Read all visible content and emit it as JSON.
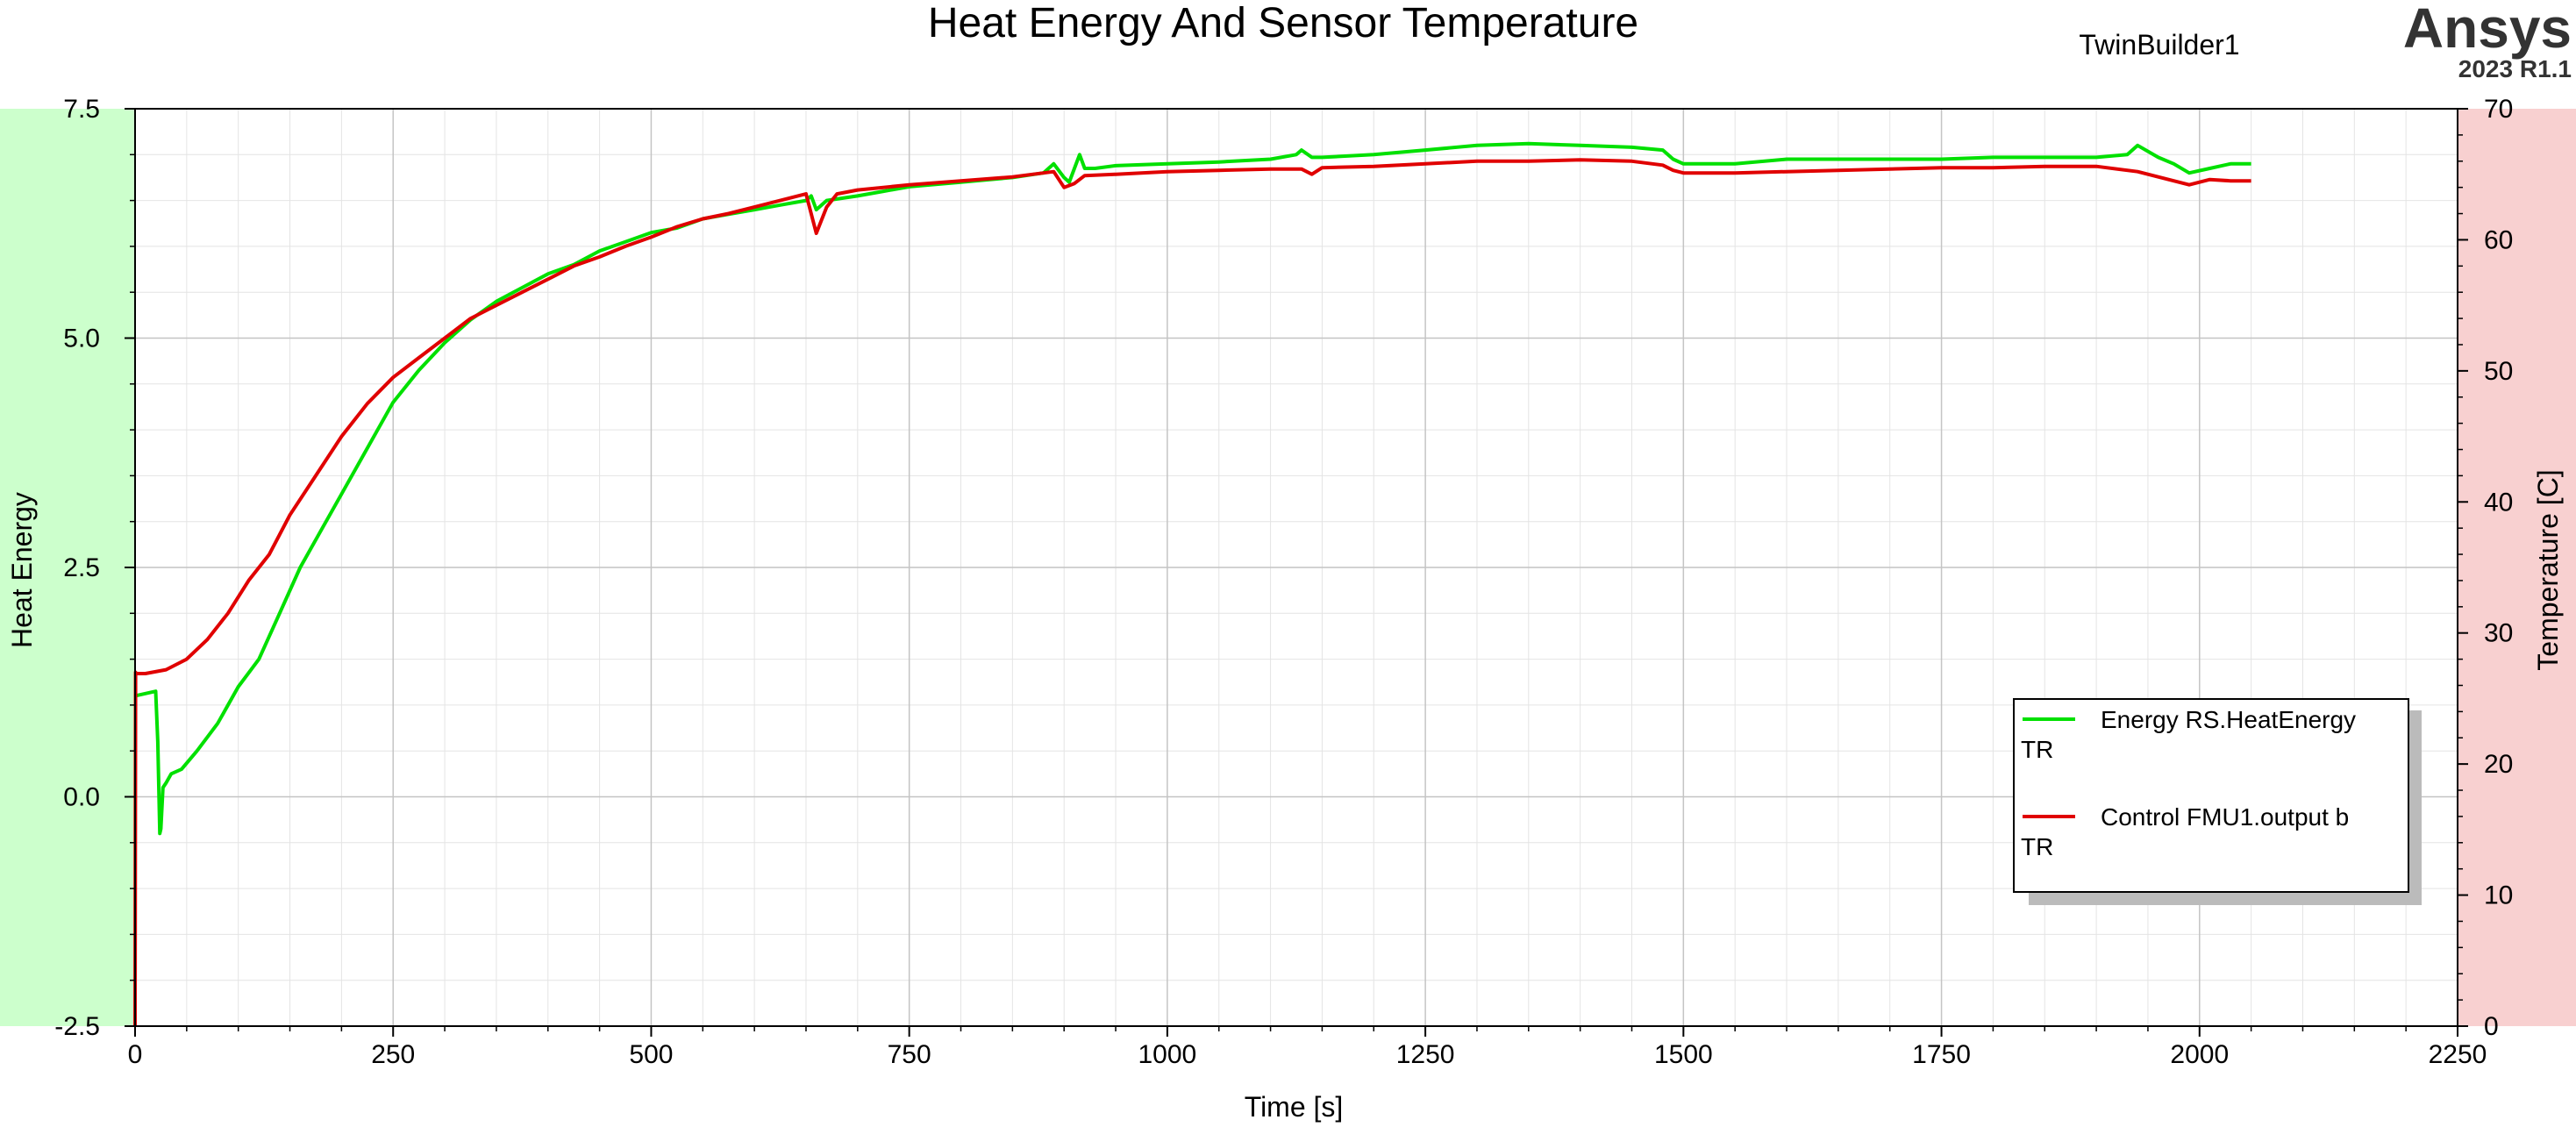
{
  "header": {
    "title": "Heat Energy And Sensor Temperature",
    "project": "TwinBuilder1",
    "brand": "Ansys",
    "version": "2023 R1.1"
  },
  "legend": {
    "items": [
      {
        "label": "Energy  RS.HeatEnergy",
        "wrap": "TR",
        "color": "#00e000"
      },
      {
        "label": "Control  FMU1.output  b",
        "wrap": "TR",
        "color": "#e00000"
      }
    ]
  },
  "chart_data": {
    "type": "line",
    "title": "Heat Energy And Sensor Temperature",
    "xlabel": "Time [s]",
    "ylabel": "Heat Energy",
    "y2label": "Temperature [C]",
    "xlim": [
      0,
      2250
    ],
    "ylim": [
      -2.5,
      7.5
    ],
    "y2lim": [
      0,
      70
    ],
    "x_ticks": [
      "0",
      "250",
      "500",
      "750",
      "1000",
      "1250",
      "1500",
      "1750",
      "2000",
      "2250"
    ],
    "y_ticks": [
      "-2.5",
      "0.0",
      "2.5",
      "5.0",
      "7.5"
    ],
    "y2_ticks": [
      "0",
      "10",
      "20",
      "30",
      "40",
      "50",
      "60",
      "70"
    ],
    "grid": true,
    "legend_position": "bottom-right",
    "left_band_color": "#ccffcc",
    "right_band_color": "#f8d0d0",
    "series": [
      {
        "name": "Energy  RS.HeatEnergy",
        "axis": "left",
        "color": "#00e000",
        "x": [
          0,
          20,
          22,
          24,
          25,
          27,
          30,
          35,
          45,
          60,
          80,
          100,
          120,
          140,
          160,
          180,
          200,
          225,
          250,
          275,
          300,
          325,
          350,
          375,
          400,
          425,
          450,
          475,
          500,
          525,
          550,
          575,
          600,
          625,
          650,
          655,
          660,
          670,
          700,
          725,
          750,
          800,
          850,
          880,
          890,
          900,
          905,
          910,
          915,
          920,
          930,
          950,
          1000,
          1050,
          1100,
          1125,
          1130,
          1140,
          1150,
          1200,
          1250,
          1300,
          1350,
          1400,
          1450,
          1480,
          1490,
          1500,
          1550,
          1600,
          1650,
          1700,
          1750,
          1800,
          1850,
          1900,
          1930,
          1940,
          1960,
          1975,
          1990,
          2010,
          2030,
          2050
        ],
        "values": [
          1.1,
          1.15,
          0.6,
          -0.4,
          -0.35,
          0.1,
          0.15,
          0.25,
          0.3,
          0.5,
          0.8,
          1.2,
          1.5,
          2.0,
          2.5,
          2.9,
          3.3,
          3.8,
          4.3,
          4.65,
          4.95,
          5.2,
          5.4,
          5.55,
          5.7,
          5.8,
          5.95,
          6.05,
          6.15,
          6.2,
          6.3,
          6.35,
          6.4,
          6.45,
          6.5,
          6.55,
          6.4,
          6.5,
          6.55,
          6.6,
          6.65,
          6.7,
          6.75,
          6.8,
          6.9,
          6.75,
          6.7,
          6.85,
          7.0,
          6.85,
          6.85,
          6.88,
          6.9,
          6.92,
          6.95,
          7.0,
          7.05,
          6.97,
          6.97,
          7.0,
          7.05,
          7.1,
          7.12,
          7.1,
          7.08,
          7.05,
          6.95,
          6.9,
          6.9,
          6.95,
          6.95,
          6.95,
          6.95,
          6.97,
          6.97,
          6.97,
          7.0,
          7.1,
          6.97,
          6.9,
          6.8,
          6.85,
          6.9,
          6.9
        ]
      },
      {
        "name": "Control  FMU1.output  b",
        "axis": "right",
        "color": "#e00000",
        "x": [
          0,
          0.5,
          1,
          10,
          30,
          50,
          70,
          90,
          110,
          130,
          140,
          150,
          175,
          200,
          225,
          250,
          275,
          300,
          325,
          350,
          375,
          400,
          425,
          450,
          475,
          500,
          525,
          550,
          575,
          600,
          625,
          650,
          660,
          670,
          680,
          700,
          725,
          750,
          800,
          850,
          890,
          900,
          910,
          920,
          950,
          1000,
          1050,
          1100,
          1130,
          1140,
          1150,
          1200,
          1250,
          1300,
          1350,
          1400,
          1450,
          1480,
          1490,
          1500,
          1550,
          1600,
          1650,
          1700,
          1750,
          1800,
          1850,
          1900,
          1940,
          1960,
          1990,
          2010,
          2030,
          2050
        ],
        "values": [
          0,
          27,
          26.9,
          26.9,
          27.2,
          28.0,
          29.5,
          31.5,
          34,
          36,
          37.5,
          39,
          42,
          45,
          47.5,
          49.5,
          51,
          52.5,
          54,
          55,
          56,
          57,
          58,
          58.7,
          59.5,
          60.2,
          61,
          61.6,
          62,
          62.5,
          63,
          63.5,
          60.5,
          62.5,
          63.5,
          63.8,
          64,
          64.2,
          64.5,
          64.8,
          65.2,
          64,
          64.3,
          64.9,
          65.0,
          65.2,
          65.3,
          65.4,
          65.4,
          65.0,
          65.5,
          65.6,
          65.8,
          66.0,
          66.0,
          66.1,
          66.0,
          65.7,
          65.3,
          65.1,
          65.1,
          65.2,
          65.3,
          65.4,
          65.5,
          65.5,
          65.6,
          65.6,
          65.2,
          64.8,
          64.2,
          64.6,
          64.5,
          64.5
        ]
      }
    ]
  }
}
